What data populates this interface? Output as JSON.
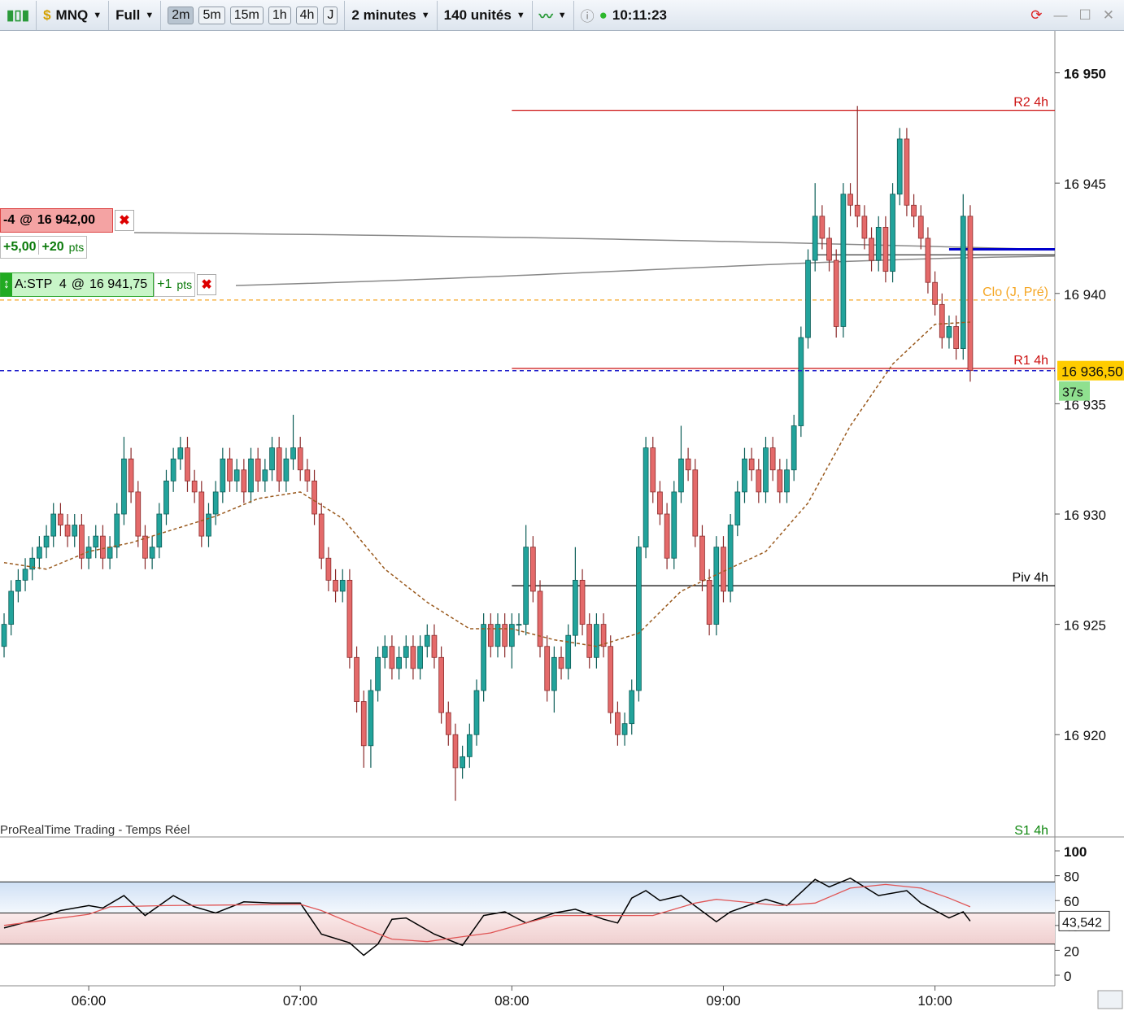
{
  "toolbar": {
    "symbol": "MNQ",
    "mode": "Full",
    "periods": [
      "2m",
      "5m",
      "15m",
      "1h",
      "4h",
      "J"
    ],
    "interval": "2 minutes",
    "units": "140 unités",
    "clock": "10:11:23"
  },
  "orders": {
    "position": {
      "qty": "-4",
      "at": "@",
      "price": "16 942,00",
      "gain": "+5,00",
      "points": "+20",
      "unit": "pts"
    },
    "stop": {
      "label": "A:STP  4",
      "at": "@",
      "price": "16 941,75",
      "points": "+1",
      "unit": "pts"
    }
  },
  "watermark": "ProRealTime Trading - Temps Réel",
  "chart_data": [
    {
      "type": "candlestick",
      "xlim": [
        -0.58,
        149.0
      ],
      "xticks": [
        {
          "value": 12,
          "label": "06:00"
        },
        {
          "value": 42,
          "label": "07:00"
        },
        {
          "value": 72,
          "label": "08:00"
        },
        {
          "value": 102,
          "label": "09:00"
        },
        {
          "value": 132,
          "label": "10:00"
        }
      ],
      "ylim": [
        16915.4,
        16951.9
      ],
      "yticks": [
        {
          "value": 16950,
          "label": "16 950"
        },
        {
          "value": 16945,
          "label": "16 945"
        },
        {
          "value": 16940,
          "label": "16 940"
        },
        {
          "value": 16935,
          "label": "16 935"
        },
        {
          "value": 16930,
          "label": "16 930"
        },
        {
          "value": 16925,
          "label": "16 925"
        },
        {
          "value": 16920,
          "label": "16 920"
        }
      ],
      "up_color": "#22a39b",
      "down_color": "#e46a6a",
      "open": [
        16924,
        16925,
        16926.5,
        16927,
        16927.5,
        16928,
        16928.5,
        16929,
        16930,
        16929.5,
        16929,
        16929.5,
        16928,
        16928.5,
        16929,
        16928,
        16928.5,
        16930,
        16932.5,
        16931,
        16929,
        16928,
        16928.5,
        16930,
        16931.5,
        16932.5,
        16933,
        16931.5,
        16931,
        16929,
        16930,
        16931,
        16932.5,
        16931.5,
        16932,
        16931,
        16932.5,
        16931.5,
        16932,
        16933,
        16931.5,
        16932.5,
        16933,
        16932,
        16931.5,
        16930,
        16928,
        16927,
        16926.5,
        16927,
        16923.5,
        16921.5,
        16919.5,
        16922,
        16923.5,
        16924,
        16923,
        16923.5,
        16924,
        16923,
        16924,
        16924.5,
        16923.5,
        16921,
        16920,
        16918.5,
        16919,
        16920,
        16922,
        16925,
        16924,
        16925,
        16924,
        16925,
        16925,
        16928.5,
        16926.5,
        16924,
        16922,
        16923.5,
        16923,
        16924.5,
        16927,
        16925,
        16923.5,
        16925,
        16924,
        16921,
        16920,
        16920.5,
        16922,
        16928.5,
        16933,
        16931,
        16930,
        16928,
        16931,
        16932.5,
        16932,
        16929,
        16927,
        16925,
        16928.5,
        16926.5,
        16929.5,
        16931,
        16932.5,
        16932,
        16931,
        16933,
        16932,
        16931,
        16932,
        16934,
        16938,
        16941.5,
        16943.5,
        16942.5,
        16941.5,
        16938.5,
        16944.5,
        16944,
        16943.5,
        16942.5,
        16941.5,
        16943,
        16941,
        16944.5,
        16947,
        16944,
        16943.5,
        16942.5,
        16940.5,
        16939.5,
        16938,
        16938.5,
        16937.5,
        16943.5
      ],
      "high": [
        16925.5,
        16927,
        16927.5,
        16928,
        16928.5,
        16929,
        16929.5,
        16930.5,
        16930.5,
        16930,
        16930,
        16930,
        16929,
        16929.5,
        16929.5,
        16929,
        16930.5,
        16933.5,
        16933,
        16931.5,
        16929.5,
        16929,
        16930.5,
        16932,
        16933,
        16933.5,
        16933.5,
        16932,
        16931.5,
        16930.5,
        16931.5,
        16933,
        16933,
        16932.5,
        16932.5,
        16933,
        16933,
        16932.5,
        16933.5,
        16933.5,
        16933,
        16934.5,
        16933.5,
        16932.5,
        16932,
        16930.5,
        16928.5,
        16927.5,
        16927.5,
        16927.5,
        16924,
        16922,
        16922.5,
        16924,
        16924.5,
        16924.5,
        16924,
        16924.5,
        16924.5,
        16924.5,
        16925,
        16925,
        16924,
        16921.5,
        16920.5,
        16919.5,
        16920.5,
        16922.5,
        16925.5,
        16925.5,
        16925.5,
        16925.5,
        16925.5,
        16925.5,
        16929.5,
        16929,
        16927,
        16924.5,
        16924,
        16924,
        16925,
        16928.5,
        16927.5,
        16925.5,
        16925.5,
        16925.5,
        16924.5,
        16921.5,
        16921,
        16922.5,
        16929,
        16933.5,
        16933.5,
        16931.5,
        16930.5,
        16931.5,
        16934,
        16933,
        16932.5,
        16929.5,
        16927.5,
        16929,
        16929,
        16930,
        16931.5,
        16933,
        16933,
        16932.5,
        16933.5,
        16933.5,
        16932.5,
        16932.5,
        16934.5,
        16938.5,
        16942,
        16945,
        16944,
        16943,
        16942,
        16945,
        16945,
        16948.5,
        16944,
        16943,
        16943.5,
        16943.5,
        16945,
        16947.5,
        16947.5,
        16944.5,
        16944,
        16943,
        16941,
        16940,
        16939,
        16939,
        16944.5,
        16944
      ],
      "low": [
        16923.5,
        16924.5,
        16926,
        16926.5,
        16927,
        16927.5,
        16928,
        16928.5,
        16929,
        16928.5,
        16928.5,
        16927.5,
        16927.5,
        16928,
        16927.5,
        16927.5,
        16928,
        16929.5,
        16930.5,
        16928.5,
        16927.5,
        16927.5,
        16928,
        16929.5,
        16931,
        16932,
        16931,
        16930.5,
        16928.5,
        16928.5,
        16929.5,
        16930.5,
        16931,
        16931,
        16930.5,
        16930.5,
        16931,
        16931,
        16931.5,
        16931,
        16931,
        16932,
        16931.5,
        16931,
        16929.5,
        16927.5,
        16926.5,
        16926,
        16926,
        16923,
        16921,
        16918.5,
        16918.5,
        16921.5,
        16923,
        16922.5,
        16922.5,
        16923,
        16922.5,
        16922.5,
        16923.5,
        16923,
        16920.5,
        16919.5,
        16917,
        16918,
        16918.5,
        16919.5,
        16921.5,
        16923.5,
        16923.5,
        16923.5,
        16923,
        16924.5,
        16924.5,
        16926,
        16923.5,
        16921.5,
        16921,
        16922.5,
        16922.5,
        16924,
        16924.5,
        16923,
        16923,
        16923.5,
        16920.5,
        16919.5,
        16919.5,
        16920,
        16921.5,
        16928,
        16930.5,
        16929.5,
        16927.5,
        16927.5,
        16930.5,
        16931.5,
        16928.5,
        16926.5,
        16924.5,
        16924.5,
        16926,
        16926,
        16929,
        16930.5,
        16931.5,
        16930.5,
        16930.5,
        16931.5,
        16930.5,
        16930.5,
        16931.5,
        16933.5,
        16937.5,
        16941,
        16942,
        16941,
        16938,
        16938,
        16943.5,
        16943,
        16942,
        16941,
        16941,
        16940.5,
        16940.5,
        16944,
        16943.5,
        16943,
        16942,
        16940,
        16939,
        16937.5,
        16937.5,
        16937,
        16937,
        16936
      ],
      "close": [
        16925,
        16926.5,
        16927,
        16927.5,
        16928,
        16928.5,
        16929,
        16930,
        16929.5,
        16929,
        16929.5,
        16928,
        16928.5,
        16929,
        16928,
        16928.5,
        16930,
        16932.5,
        16931,
        16929,
        16928,
        16928.5,
        16930,
        16931.5,
        16932.5,
        16933,
        16931.5,
        16931,
        16929,
        16930,
        16931,
        16932.5,
        16931.5,
        16932,
        16931,
        16932.5,
        16931.5,
        16932,
        16933,
        16931.5,
        16932.5,
        16933,
        16932,
        16931.5,
        16930,
        16928,
        16927,
        16926.5,
        16927,
        16923.5,
        16921.5,
        16919.5,
        16922,
        16923.5,
        16924,
        16923,
        16923.5,
        16924,
        16923,
        16924,
        16924.5,
        16923.5,
        16921,
        16920,
        16918.5,
        16919,
        16920,
        16922,
        16925,
        16924,
        16925,
        16924,
        16925,
        16925,
        16928.5,
        16926.5,
        16924,
        16922,
        16923.5,
        16923,
        16924.5,
        16927,
        16925,
        16923.5,
        16925,
        16924,
        16921,
        16920,
        16920.5,
        16922,
        16928.5,
        16933,
        16931,
        16930,
        16928,
        16931,
        16932.5,
        16932,
        16929,
        16927,
        16925,
        16928.5,
        16926.5,
        16929.5,
        16931,
        16932.5,
        16932,
        16931,
        16933,
        16932,
        16931,
        16932,
        16934,
        16938,
        16941.5,
        16943.5,
        16942.5,
        16941.5,
        16938.5,
        16944.5,
        16944,
        16943.5,
        16942.5,
        16941.5,
        16943,
        16941,
        16944.5,
        16947,
        16944,
        16943.5,
        16942.5,
        16940.5,
        16939.5,
        16938,
        16938.5,
        16937.5,
        16943.5,
        16936.5
      ],
      "ma": {
        "color": "#9a5a1e",
        "x": [
          0,
          6,
          12,
          18,
          24,
          30,
          36,
          42,
          48,
          54,
          60,
          66,
          72,
          78,
          84,
          90,
          96,
          102,
          108,
          114,
          120,
          126,
          132,
          137
        ],
        "values": [
          16927.8,
          16927.5,
          16928.3,
          16928.7,
          16929.3,
          16929.9,
          16930.7,
          16931.0,
          16929.8,
          16927.5,
          16926.0,
          16924.8,
          16924.8,
          16924.3,
          16924.0,
          16924.6,
          16926.5,
          16927.4,
          16928.3,
          16930.5,
          16934.0,
          16936.8,
          16938.6,
          16938.7
        ]
      },
      "levels": [
        {
          "name": "R2 4h",
          "value": 16948.3,
          "start": 72,
          "color": "#cc1111"
        },
        {
          "name": "Clo (J, Pré)",
          "value": 16939.7,
          "start": -0.58,
          "color": "#f5a623",
          "dashed": true
        },
        {
          "name": "R1 4h",
          "value": 16936.6,
          "start": 72,
          "color": "#cc1111"
        },
        {
          "name": "Piv 4h",
          "value": 16926.75,
          "start": 72,
          "color": "#000000"
        },
        {
          "name": "S1 4h",
          "value": 16915.0,
          "start": 72,
          "color": "#118811"
        }
      ],
      "order_lines": [
        {
          "value": 16942.0,
          "start": 134,
          "color": "#0000cc"
        },
        {
          "value": 16941.75,
          "start": 115,
          "color": "#222222"
        }
      ],
      "last_price": 16936.5,
      "last_price_label": "16 936,50",
      "countdown": "37s"
    },
    {
      "type": "line",
      "ylim": [
        -8.5,
        110.5
      ],
      "yticks": [
        0,
        20,
        40,
        60,
        80,
        100
      ],
      "bands": [
        25,
        75
      ],
      "midline": 50,
      "last_value_label": "43,542",
      "series": [
        {
          "color": "#000000",
          "x": [
            0,
            4,
            8,
            12,
            14,
            17,
            20,
            24,
            27,
            30,
            34,
            38,
            42,
            45,
            49,
            51,
            53,
            55,
            57,
            61,
            65,
            68,
            71,
            74,
            78,
            81,
            85,
            87,
            89,
            91,
            93,
            96,
            101,
            103,
            108,
            111,
            115,
            117,
            120,
            124,
            128,
            130,
            134,
            136,
            137
          ],
          "values": [
            38,
            44,
            52,
            56,
            54,
            64,
            48,
            64,
            55,
            50,
            59,
            58,
            58,
            33,
            26,
            16,
            25,
            45,
            46,
            33,
            24,
            48,
            51,
            42,
            50,
            53,
            45,
            42,
            62,
            68,
            60,
            64,
            43,
            51,
            61,
            56,
            77,
            71,
            78,
            64,
            68,
            58,
            46,
            51,
            43.542
          ]
        },
        {
          "color": "#e05555",
          "x": [
            0,
            12,
            15,
            23,
            42,
            45,
            50,
            55,
            60,
            65,
            69,
            74,
            78,
            84,
            92,
            98,
            101,
            110,
            115,
            120,
            125,
            130,
            134,
            137
          ],
          "values": [
            40,
            49,
            55,
            56,
            57,
            52,
            40,
            29,
            27,
            31,
            34,
            42,
            48,
            48,
            48,
            58,
            61,
            56,
            58,
            70,
            73,
            70,
            62,
            55
          ]
        }
      ]
    }
  ]
}
